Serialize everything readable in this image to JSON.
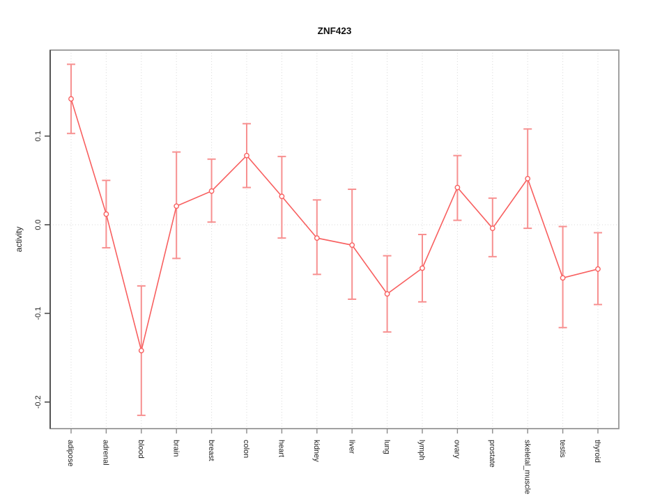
{
  "figure": {
    "title": "ZNF423"
  },
  "chart_data": {
    "type": "line",
    "title": "ZNF423",
    "xlabel": "",
    "ylabel": "activity",
    "categories": [
      "adipose",
      "adrenal",
      "blood",
      "brain",
      "breast",
      "colon",
      "heart",
      "kidney",
      "liver",
      "lung",
      "lymph",
      "ovary",
      "prostate",
      "skeletal_muscle",
      "testis",
      "thyroid"
    ],
    "series": [
      {
        "name": "activity",
        "values": [
          0.142,
          0.012,
          -0.142,
          0.021,
          0.038,
          0.078,
          0.032,
          -0.015,
          -0.023,
          -0.078,
          -0.049,
          0.042,
          -0.004,
          0.052,
          -0.06,
          -0.05
        ],
        "ci_upper": [
          0.181,
          0.05,
          -0.069,
          0.082,
          0.074,
          0.114,
          0.077,
          0.028,
          0.04,
          -0.035,
          -0.011,
          0.078,
          0.03,
          0.108,
          -0.002,
          -0.009
        ],
        "ci_lower": [
          0.103,
          -0.026,
          -0.215,
          -0.038,
          0.003,
          0.042,
          -0.015,
          -0.056,
          -0.084,
          -0.121,
          -0.087,
          0.005,
          -0.036,
          -0.004,
          -0.116,
          -0.09
        ]
      }
    ],
    "ylim": [
      -0.23,
      0.197
    ],
    "yticks": [
      0.1,
      0.0,
      -0.1,
      -0.2
    ],
    "ytick_labels": [
      "0.1",
      "0.0",
      "-0.1",
      "-0.2"
    ],
    "grid": "dotted vertical line at each category, dotted horizontal line at 0",
    "legend": "none",
    "marker": "open-circle",
    "colors": {
      "line": "#f85f5f",
      "marker_stroke": "#f85f5f",
      "marker_fill": "#ffffff",
      "errorbar": "#f79090",
      "grid": "#d8d8d8",
      "zero_line": "#d8d8d8",
      "box": "#979797",
      "y_axis": "#4a4a4a",
      "x_tick": "#8a8a8a",
      "text": "#222222"
    }
  }
}
